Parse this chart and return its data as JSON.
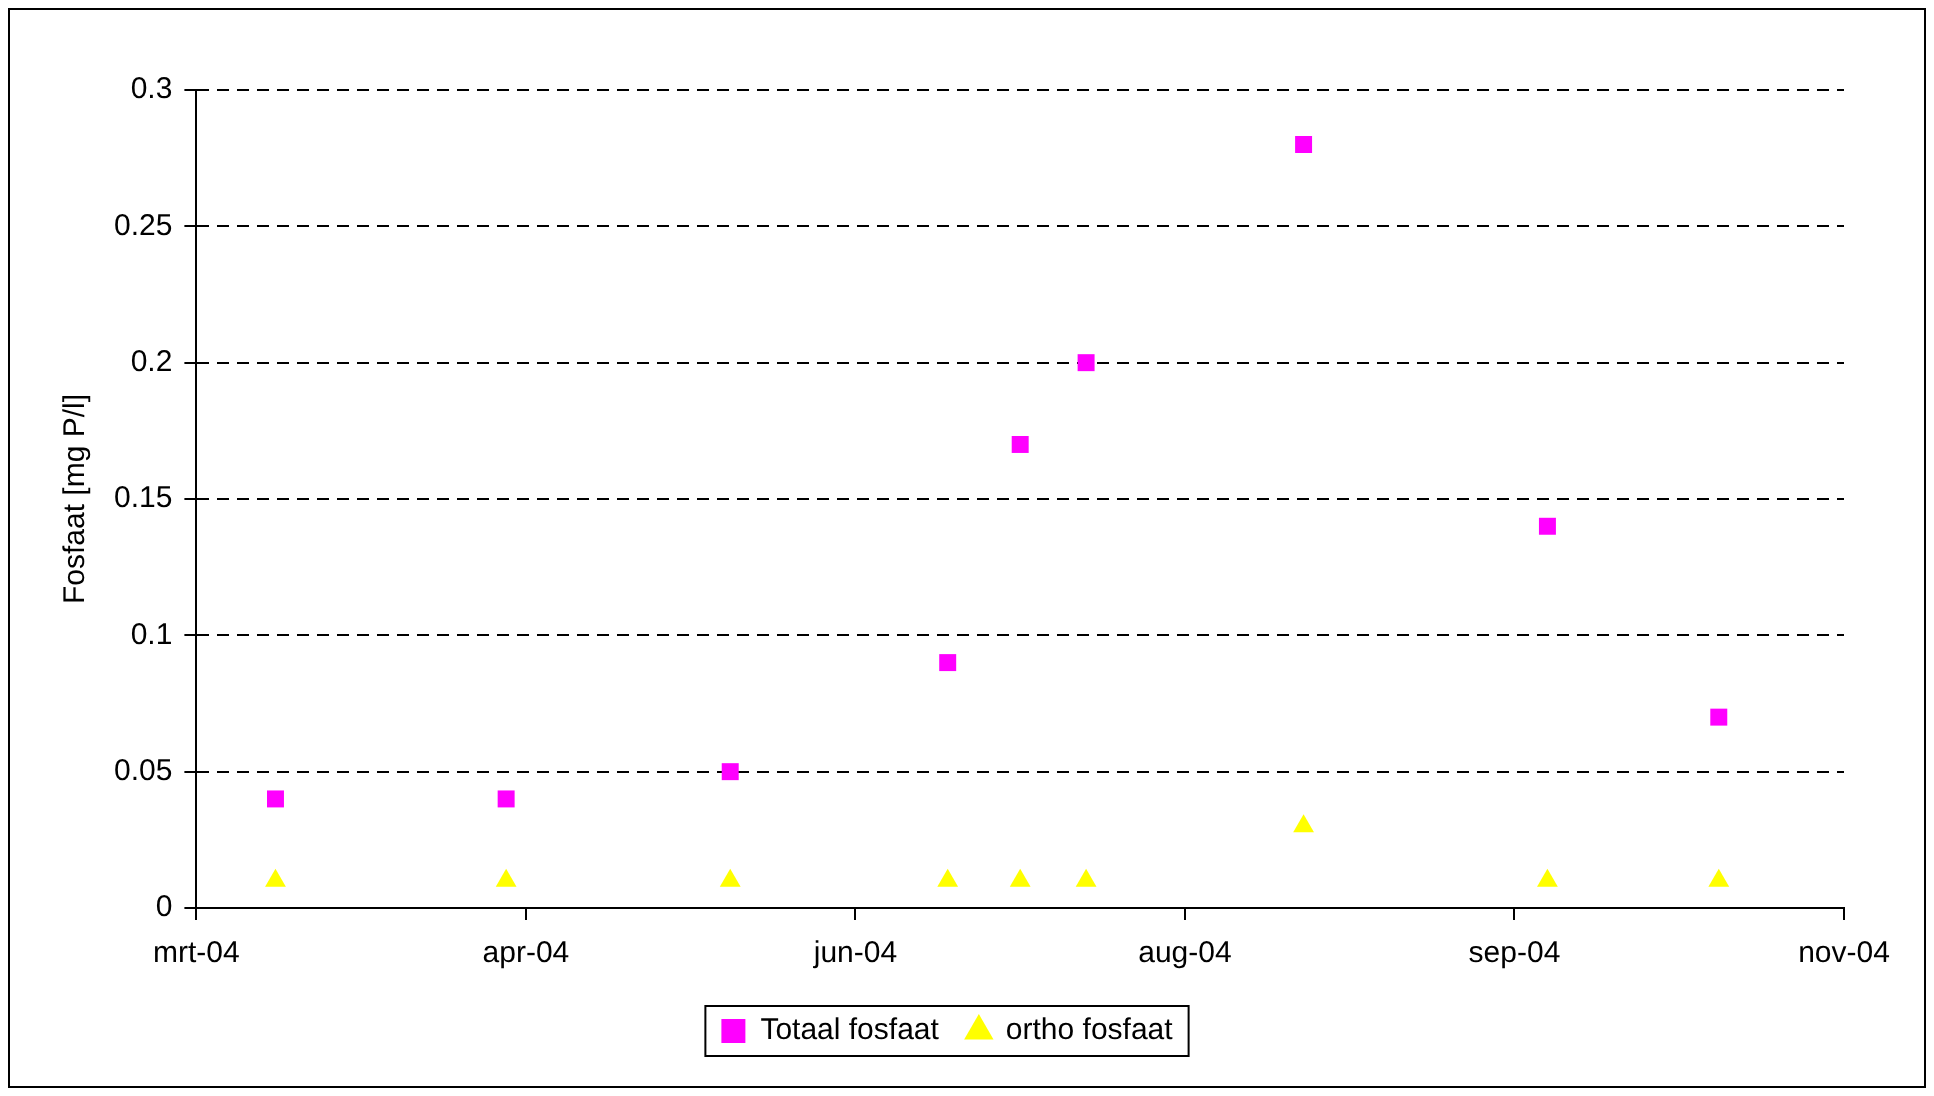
{
  "chart_data": {
    "type": "scatter",
    "ylabel": "Fosfaat [mg P/l]",
    "x": [
      "2004-03-16",
      "2004-04-20",
      "2004-05-24",
      "2004-06-26",
      "2004-07-07",
      "2004-07-17",
      "2004-08-19",
      "2004-09-25",
      "2004-10-21"
    ],
    "series": [
      {
        "name": "Totaal fosfaat",
        "color": "#ff00ff",
        "marker": "square",
        "values": [
          0.04,
          0.04,
          0.05,
          0.09,
          0.17,
          0.2,
          0.28,
          0.14,
          0.07
        ]
      },
      {
        "name": "ortho fosfaat",
        "color": "#ffff00",
        "marker": "triangle",
        "values": [
          0.01,
          0.01,
          0.01,
          0.01,
          0.01,
          0.01,
          0.03,
          0.01,
          0.01
        ]
      }
    ],
    "xlim": [
      "2004-03-04",
      "2004-11-09"
    ],
    "xticks": [
      {
        "value": "2004-03-04",
        "label": "mrt-04"
      },
      {
        "value": "2004-04-23",
        "label": "apr-04"
      },
      {
        "value": "2004-06-12",
        "label": "jun-04"
      },
      {
        "value": "2004-08-01",
        "label": "aug-04"
      },
      {
        "value": "2004-09-20",
        "label": "sep-04"
      },
      {
        "value": "2004-11-09",
        "label": "nov-04"
      }
    ],
    "ylim": [
      0,
      0.3
    ],
    "yticks": [
      0,
      0.05,
      0.1,
      0.15,
      0.2,
      0.25,
      0.3
    ],
    "grid": "y",
    "legend": "bottom"
  }
}
